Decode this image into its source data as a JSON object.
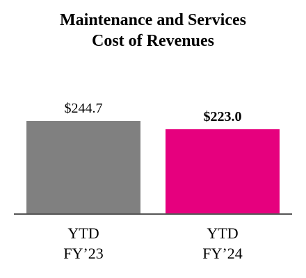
{
  "chart_data": {
    "type": "bar",
    "title": [
      "Maintenance and Services",
      "Cost of Revenues"
    ],
    "categories": [
      [
        "YTD",
        "FY’23"
      ],
      [
        "YTD",
        "FY’24"
      ]
    ],
    "values": [
      244.7,
      223.0
    ],
    "value_labels": [
      "$244.7",
      "$223.0"
    ],
    "value_label_bold": [
      false,
      true
    ],
    "bar_colors": [
      "#808080",
      "#e6007e"
    ],
    "axis_color": "#555555",
    "xlabel": "",
    "ylabel": "",
    "ylim": [
      0,
      300
    ],
    "grid": false
  }
}
